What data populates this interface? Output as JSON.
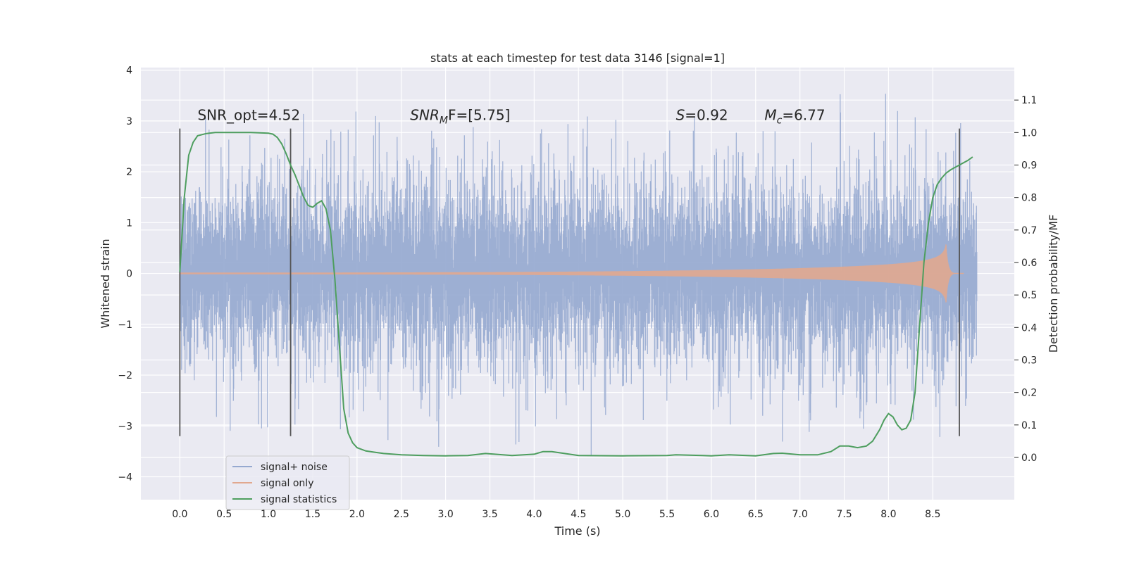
{
  "chart_data": {
    "type": "line",
    "title": "stats at each timestep for test data 3146 [signal=1]",
    "xlabel": "Time (s)",
    "ylabel": "Whitened strain",
    "ylabel_right": "Detection probability/MF",
    "xlim": [
      -0.44,
      9.42
    ],
    "ylim": [
      -4.45,
      4.05
    ],
    "ylim_right": [
      -0.13,
      1.2
    ],
    "xticks": [
      0.0,
      0.5,
      1.0,
      1.5,
      2.0,
      2.5,
      3.0,
      3.5,
      4.0,
      4.5,
      5.0,
      5.5,
      6.0,
      6.5,
      7.0,
      7.5,
      8.0,
      8.5
    ],
    "xtick_labels": [
      "0.0",
      "0.5",
      "1.0",
      "1.5",
      "2.0",
      "2.5",
      "3.0",
      "3.5",
      "4.0",
      "4.5",
      "5.0",
      "5.5",
      "6.0",
      "6.5",
      "7.0",
      "7.5",
      "8.0",
      "8.5"
    ],
    "yticks": [
      -4,
      -3,
      -2,
      -1,
      0,
      1,
      2,
      3,
      4
    ],
    "ytick_labels": [
      "−4",
      "−3",
      "−2",
      "−1",
      "0",
      "1",
      "2",
      "3",
      "4"
    ],
    "yticks_right": [
      0.0,
      0.1,
      0.2,
      0.3,
      0.4,
      0.5,
      0.6,
      0.7,
      0.8,
      0.9,
      1.0,
      1.1
    ],
    "ytick_labels_right": [
      "0.0",
      "0.1",
      "0.2",
      "0.3",
      "0.4",
      "0.5",
      "0.6",
      "0.7",
      "0.8",
      "0.9",
      "1.0",
      "1.1"
    ],
    "grid": true,
    "legend_position": "lower-left",
    "series": [
      {
        "name": "signal+ noise",
        "color": "#96a9d0",
        "axis": "left",
        "x_range": [
          0.0,
          9.0
        ],
        "envelope_std": 0.75,
        "peak_range": [
          -4.0,
          3.7
        ]
      },
      {
        "name": "signal only",
        "color": "#e1a88f",
        "axis": "left",
        "x_range": [
          0.0,
          8.85
        ],
        "merger_time": 8.65,
        "peak_amplitude": 0.6
      },
      {
        "name": "signal statistics",
        "color": "#4e9e5f",
        "axis": "right",
        "x": [
          0.0,
          0.05,
          0.1,
          0.15,
          0.2,
          0.3,
          0.4,
          0.5,
          0.6,
          0.7,
          0.8,
          0.9,
          1.0,
          1.05,
          1.1,
          1.15,
          1.2,
          1.25,
          1.3,
          1.35,
          1.4,
          1.45,
          1.5,
          1.55,
          1.6,
          1.65,
          1.7,
          1.75,
          1.8,
          1.85,
          1.9,
          1.95,
          2.0,
          2.1,
          2.2,
          2.3,
          2.5,
          2.75,
          3.0,
          3.25,
          3.45,
          3.75,
          4.0,
          4.1,
          4.2,
          4.5,
          5.0,
          5.5,
          5.6,
          5.9,
          6.0,
          6.2,
          6.5,
          6.7,
          6.8,
          7.0,
          7.2,
          7.35,
          7.45,
          7.55,
          7.65,
          7.75,
          7.82,
          7.9,
          7.95,
          8.0,
          8.05,
          8.1,
          8.15,
          8.2,
          8.25,
          8.3,
          8.35,
          8.4,
          8.45,
          8.5,
          8.55,
          8.6,
          8.65,
          8.7,
          8.8,
          8.9,
          8.95
        ],
        "values": [
          0.57,
          0.8,
          0.93,
          0.97,
          0.99,
          0.997,
          1.0,
          1.0,
          1.0,
          1.0,
          1.0,
          0.999,
          0.998,
          0.995,
          0.985,
          0.965,
          0.935,
          0.9,
          0.87,
          0.835,
          0.8,
          0.775,
          0.77,
          0.782,
          0.79,
          0.765,
          0.7,
          0.55,
          0.35,
          0.15,
          0.075,
          0.045,
          0.03,
          0.02,
          0.016,
          0.012,
          0.008,
          0.006,
          0.005,
          0.006,
          0.012,
          0.006,
          0.01,
          0.018,
          0.018,
          0.006,
          0.005,
          0.006,
          0.008,
          0.006,
          0.005,
          0.008,
          0.005,
          0.012,
          0.013,
          0.008,
          0.008,
          0.018,
          0.035,
          0.035,
          0.03,
          0.035,
          0.05,
          0.085,
          0.115,
          0.135,
          0.125,
          0.1,
          0.085,
          0.09,
          0.115,
          0.2,
          0.4,
          0.6,
          0.72,
          0.8,
          0.84,
          0.86,
          0.875,
          0.885,
          0.9,
          0.915,
          0.925
        ]
      }
    ],
    "vlines": {
      "color": "#555555",
      "x": [
        0.0,
        1.25,
        8.8
      ],
      "ymin": -3.2,
      "ymax": 2.85
    },
    "annotations": [
      {
        "text": "SNR_opt=4.52",
        "x": 0.2,
        "y": 3.02
      },
      {
        "text": "F=[5.75]",
        "prefix": "SNR",
        "subscript": "M",
        "x": 2.6,
        "y": 3.02
      },
      {
        "text": "=0.92",
        "prefix": "S",
        "x": 5.6,
        "y": 3.02
      },
      {
        "text": "=6.77",
        "prefix": "M",
        "subscript": "c",
        "x": 6.6,
        "y": 3.02
      }
    ]
  }
}
